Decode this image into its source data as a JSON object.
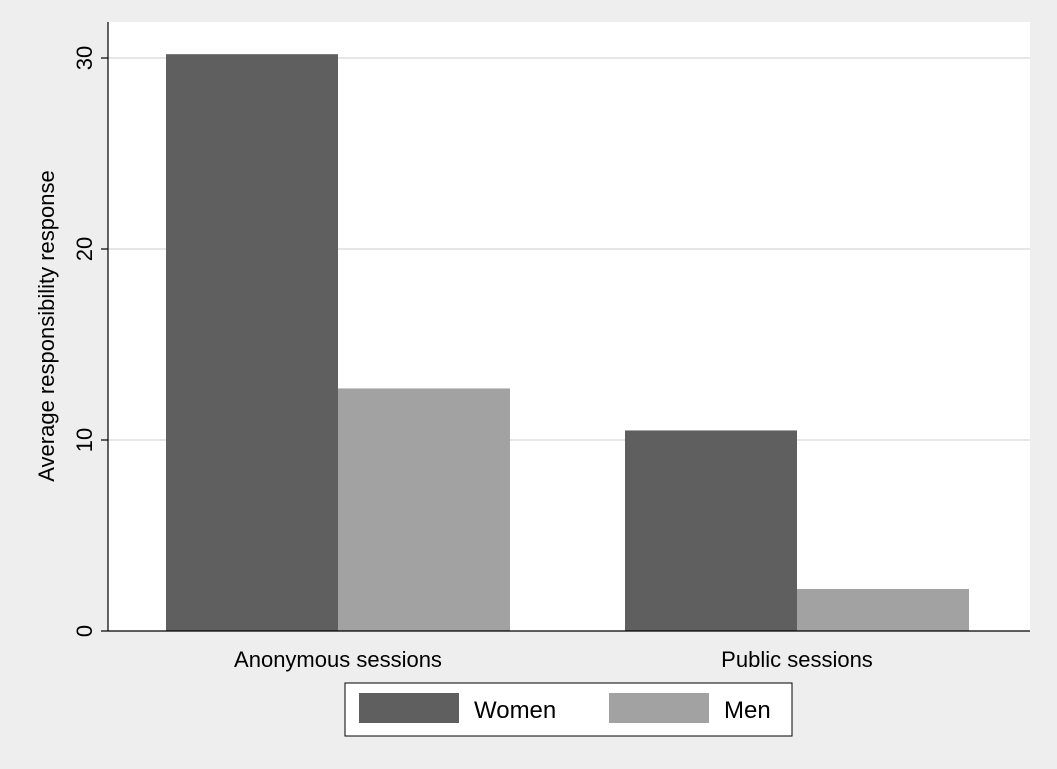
{
  "chart_data": {
    "type": "bar",
    "categories": [
      "Anonymous sessions",
      "Public sessions"
    ],
    "series": [
      {
        "name": "Women",
        "values": [
          30.2,
          10.5
        ],
        "color": "#5f5f5f"
      },
      {
        "name": "Men",
        "values": [
          12.7,
          2.2
        ],
        "color": "#a2a2a2"
      }
    ],
    "title": "",
    "xlabel": "",
    "ylabel": "Average responsibility response",
    "ylim": [
      0,
      31
    ],
    "yticks": [
      0,
      10,
      20,
      30
    ],
    "ytick_labels": [
      "0",
      "10",
      "20",
      "30"
    ],
    "grid": true,
    "legend_position": "bottom",
    "colors": {
      "background": "#eeeeee",
      "plot_background": "#ffffff",
      "grid": "#e6e6e6",
      "axis": "#000000"
    }
  }
}
